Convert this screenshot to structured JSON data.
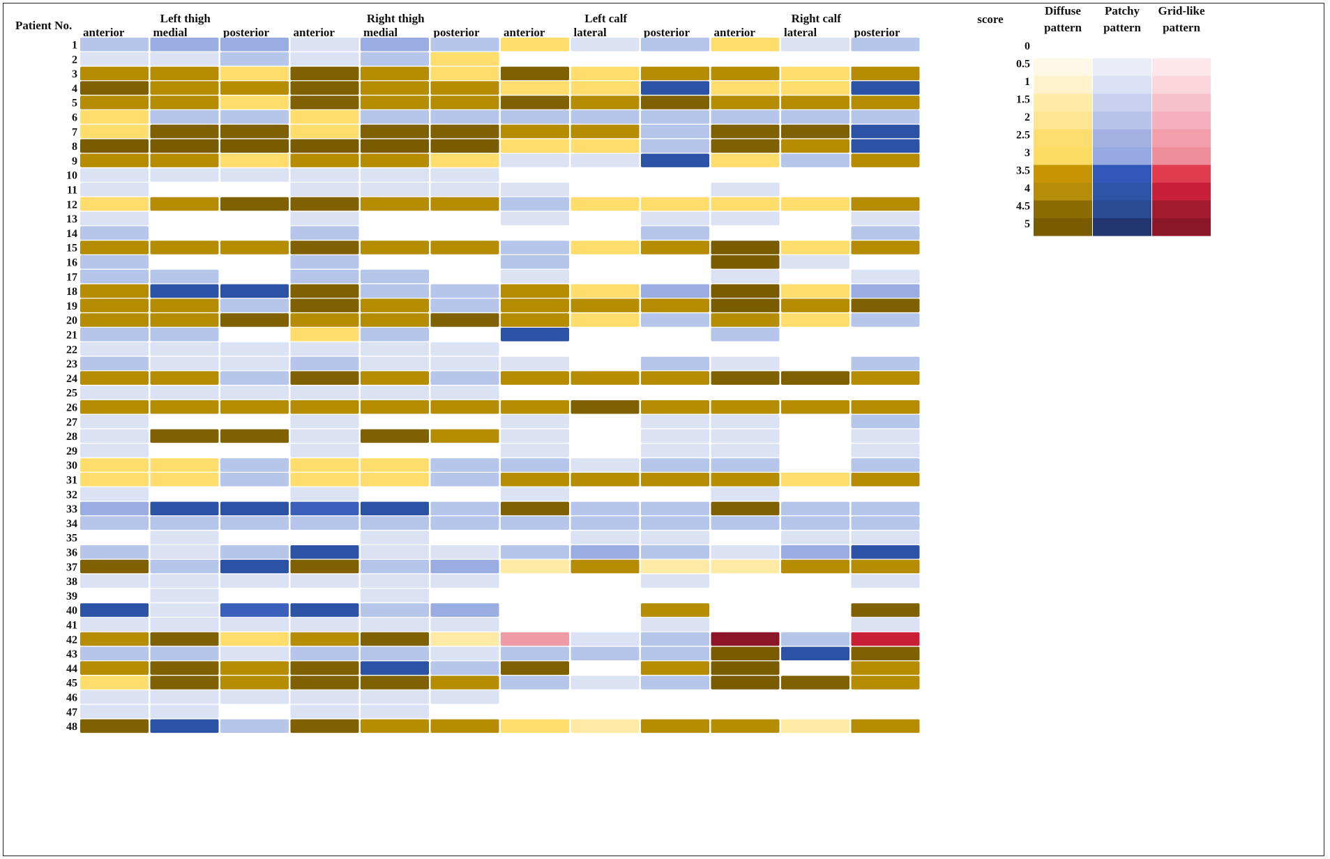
{
  "chart_data": {
    "type": "heatmap",
    "header": {
      "patient_label": "Patient No.",
      "groups": [
        "Left thigh",
        "Right thigh",
        "Left calf",
        "Right calf"
      ],
      "columns": [
        "anterior",
        "medial",
        "posterior",
        "anterior",
        "medial",
        "posterior",
        "anterior",
        "lateral",
        "posterior",
        "anterior",
        "lateral",
        "posterior"
      ]
    },
    "patients": [
      "1",
      "2",
      "3",
      "4",
      "5",
      "6",
      "7",
      "8",
      "9",
      "10",
      "11",
      "12",
      "13",
      "14",
      "15",
      "16",
      "17",
      "18",
      "19",
      "20",
      "21",
      "22",
      "23",
      "24",
      "25",
      "26",
      "27",
      "28",
      "29",
      "30",
      "31",
      "32",
      "33",
      "34",
      "35",
      "36",
      "37",
      "38",
      "39",
      "40",
      "41",
      "42",
      "43",
      "44",
      "45",
      "46",
      "47",
      "48"
    ],
    "cells": [
      [
        "P2",
        "P2.5",
        "P2.5",
        "P1",
        "P2.5",
        "P2",
        "D3",
        "P1",
        "P2",
        "D3",
        "P1",
        "P2"
      ],
      [
        "P1",
        "P1",
        "P2",
        "P1",
        "P2",
        "D3",
        "N",
        "N",
        "N",
        "N",
        "N",
        "N"
      ],
      [
        "D4",
        "D4",
        "D3",
        "D4.5",
        "D4",
        "D3",
        "D4.5",
        "D3",
        "D4",
        "D4",
        "D3",
        "D4"
      ],
      [
        "D4.5",
        "D4",
        "D4",
        "D4.5",
        "D4",
        "D4",
        "D3",
        "D3",
        "P4",
        "D3",
        "D3",
        "P4"
      ],
      [
        "D4",
        "D4",
        "D3",
        "D4.5",
        "D4",
        "D4",
        "D4.5",
        "D4",
        "D4.5",
        "D4",
        "D4",
        "D4"
      ],
      [
        "D3",
        "P2",
        "P2",
        "D3",
        "P2",
        "P2",
        "P2",
        "P2",
        "P2",
        "P2",
        "P2",
        "P2"
      ],
      [
        "D3",
        "D4.5",
        "D4.5",
        "D3",
        "D4.5",
        "D4.5",
        "D4",
        "D4",
        "P2",
        "D4.5",
        "D4.5",
        "P4"
      ],
      [
        "D5",
        "D5",
        "D5",
        "D5",
        "D5",
        "D5",
        "D3",
        "D3",
        "P2",
        "D4.5",
        "D4",
        "P4"
      ],
      [
        "D4",
        "D4",
        "D3",
        "D4",
        "D4",
        "D3",
        "P1",
        "P1",
        "P4",
        "D3",
        "P2",
        "D4"
      ],
      [
        "P1",
        "P1",
        "P1",
        "P1",
        "P1",
        "P1",
        "N",
        "N",
        "N",
        "N",
        "N",
        "N"
      ],
      [
        "P1",
        "N",
        "N",
        "P1",
        "P1",
        "P1",
        "P1",
        "N",
        "N",
        "P1",
        "N",
        "N"
      ],
      [
        "D3",
        "D4",
        "D4.5",
        "D4.5",
        "D4",
        "D4",
        "P2",
        "D3",
        "D3",
        "D3",
        "D3",
        "D4"
      ],
      [
        "P1",
        "N",
        "N",
        "P1",
        "N",
        "N",
        "P1",
        "N",
        "P1",
        "P1",
        "N",
        "P1"
      ],
      [
        "P2",
        "N",
        "N",
        "P2",
        "N",
        "N",
        "N",
        "N",
        "P2",
        "N",
        "N",
        "P2"
      ],
      [
        "D4",
        "D4",
        "D4",
        "D4.5",
        "D4",
        "D4",
        "P2",
        "D3",
        "D4",
        "D5",
        "D3",
        "D4"
      ],
      [
        "P2",
        "N",
        "N",
        "P2",
        "N",
        "N",
        "P2",
        "N",
        "N",
        "D5",
        "P1",
        "N"
      ],
      [
        "P2",
        "P2",
        "N",
        "P2",
        "P2",
        "N",
        "P1",
        "N",
        "N",
        "P1",
        "N",
        "P1"
      ],
      [
        "D4",
        "P4",
        "P4",
        "D4.5",
        "P2",
        "P2",
        "D4",
        "D3",
        "P2.5",
        "D5",
        "D3",
        "P2.5"
      ],
      [
        "D4",
        "D4",
        "P2",
        "D4.5",
        "D4",
        "P2",
        "D4",
        "D4",
        "D4",
        "D5",
        "D4",
        "D4.5"
      ],
      [
        "D4",
        "D4",
        "D4.5",
        "D4",
        "D4",
        "D4.5",
        "D4",
        "D3",
        "P2",
        "D4",
        "D3",
        "P2"
      ],
      [
        "P2",
        "P2",
        "N",
        "D3",
        "P2",
        "N",
        "P4",
        "N",
        "N",
        "P2",
        "N",
        "N"
      ],
      [
        "P1",
        "P1",
        "P1",
        "P1",
        "P1",
        "P1",
        "N",
        "N",
        "N",
        "N",
        "N",
        "N"
      ],
      [
        "P2",
        "P1",
        "P1",
        "P2",
        "P1",
        "P1",
        "P1",
        "N",
        "P2",
        "P1",
        "N",
        "P2"
      ],
      [
        "D4",
        "D4",
        "P2",
        "D4.5",
        "D4",
        "P2",
        "D4",
        "D4",
        "D4",
        "D4.5",
        "D4.5",
        "D4"
      ],
      [
        "P1",
        "P1",
        "P1",
        "P1",
        "P1",
        "P1",
        "N",
        "N",
        "N",
        "N",
        "N",
        "N"
      ],
      [
        "D4",
        "D4",
        "D4",
        "D4",
        "D4",
        "D4",
        "D4",
        "D4.5",
        "D4",
        "D4",
        "D4",
        "D4"
      ],
      [
        "P1",
        "N",
        "N",
        "P1",
        "N",
        "N",
        "P1",
        "N",
        "P1",
        "P1",
        "N",
        "P2"
      ],
      [
        "P1",
        "D4.5",
        "D4.5",
        "P1",
        "D4.5",
        "D4",
        "P1",
        "N",
        "P1",
        "P1",
        "N",
        "P1"
      ],
      [
        "P1",
        "N",
        "N",
        "P1",
        "N",
        "N",
        "P1",
        "N",
        "P1",
        "P1",
        "N",
        "P1"
      ],
      [
        "D3",
        "D3",
        "P2",
        "D3",
        "D3",
        "P2",
        "P2",
        "P1",
        "P2",
        "P2",
        "N",
        "P2"
      ],
      [
        "D3",
        "D3",
        "P2",
        "D3",
        "D3",
        "P2",
        "D4",
        "D4",
        "D4",
        "D4",
        "D3",
        "D4"
      ],
      [
        "P1",
        "N",
        "N",
        "P1",
        "N",
        "N",
        "P1",
        "N",
        "N",
        "P1",
        "N",
        "N"
      ],
      [
        "P2.5",
        "P4",
        "P4",
        "P3.5",
        "P4",
        "P2",
        "D4.5",
        "P2",
        "P2",
        "D4.5",
        "P2",
        "P2"
      ],
      [
        "P2",
        "P2",
        "P2",
        "P2",
        "P2",
        "P2",
        "P2",
        "P2",
        "P2",
        "P2",
        "P2",
        "P2"
      ],
      [
        "N",
        "P1",
        "N",
        "N",
        "P1",
        "N",
        "N",
        "P1",
        "P1",
        "N",
        "P1",
        "P1"
      ],
      [
        "P2",
        "P1",
        "P2",
        "P4",
        "P1",
        "P1",
        "P2",
        "P2.5",
        "P2",
        "P1",
        "P2.5",
        "P4"
      ],
      [
        "D4.5",
        "P2",
        "P4",
        "D4.5",
        "P2",
        "P2.5",
        "D1.5",
        "D4",
        "D1.5",
        "D1.5",
        "D4",
        "D4"
      ],
      [
        "P1",
        "P1",
        "P1",
        "P1",
        "P1",
        "P1",
        "N",
        "N",
        "P1",
        "N",
        "N",
        "P1"
      ],
      [
        "N",
        "P1",
        "N",
        "N",
        "P1",
        "N",
        "N",
        "N",
        "N",
        "N",
        "N",
        "N"
      ],
      [
        "P4",
        "P1",
        "P3.5",
        "P4",
        "P2",
        "P2.5",
        "N",
        "N",
        "D4",
        "N",
        "N",
        "D4.5"
      ],
      [
        "P1",
        "P1",
        "P1",
        "P1",
        "P1",
        "P1",
        "N",
        "N",
        "P1",
        "N",
        "N",
        "P1"
      ],
      [
        "D4",
        "D4.5",
        "D3",
        "D4",
        "D4.5",
        "D1.5",
        "G3",
        "P1",
        "P2",
        "G5",
        "P2",
        "G4"
      ],
      [
        "P2",
        "P2",
        "P1",
        "P2",
        "P2",
        "P1",
        "P2",
        "P2",
        "P2",
        "D5",
        "P4",
        "D4.5"
      ],
      [
        "D4",
        "D4.5",
        "D4",
        "D4.5",
        "P4",
        "P2",
        "D4.5",
        "N",
        "D4",
        "D5",
        "N",
        "D4"
      ],
      [
        "D3",
        "D4.5",
        "D4",
        "D4.5",
        "D4.5",
        "D4",
        "P2",
        "P1",
        "P2",
        "D5",
        "D4.5",
        "D4"
      ],
      [
        "P1",
        "P1",
        "P1",
        "P1",
        "P1",
        "P1",
        "N",
        "N",
        "N",
        "N",
        "N",
        "N"
      ],
      [
        "P1",
        "P1",
        "N",
        "P1",
        "P1",
        "N",
        "N",
        "N",
        "N",
        "N",
        "N",
        "N"
      ],
      [
        "D4.5",
        "P4",
        "P2",
        "D4.5",
        "D4",
        "D4",
        "D3",
        "D1.5",
        "D4",
        "D4",
        "D1.5",
        "D4"
      ]
    ],
    "legend": {
      "score_label": "score",
      "pattern_headers": [
        [
          "Diffuse",
          "pattern"
        ],
        [
          "Patchy",
          "pattern"
        ],
        [
          "Grid-like",
          "pattern"
        ]
      ],
      "scores": [
        "0",
        "0.5",
        "1",
        "1.5",
        "2",
        "2.5",
        "3",
        "3.5",
        "4",
        "4.5",
        "5"
      ],
      "colors": {
        "diffuse": [
          "#ffffff",
          "#fff8e6",
          "#fff2cc",
          "#ffeaa6",
          "#fee594",
          "#fddc70",
          "#fddc63",
          "#c79504",
          "#b58d08",
          "#8c6a02",
          "#7a5c00"
        ],
        "patchy": [
          "#ffffff",
          "#eaedf8",
          "#dbe1f4",
          "#c9d1ee",
          "#b8c4ea",
          "#a2b1e2",
          "#96a9e0",
          "#3057b9",
          "#2c54a7",
          "#2a4b94",
          "#21366f"
        ],
        "grid": [
          "#ffffff",
          "#fde7eb",
          "#fad6dc",
          "#f7c2cb",
          "#f4b0bc",
          "#f29fab",
          "#ef8e9b",
          "#e03c50",
          "#c8203a",
          "#a01c2e",
          "#8a1627"
        ]
      }
    },
    "cell_colors": {
      "N": "#ffffff",
      "P1": "#dbe2f4",
      "P2": "#b6c5ea",
      "P2.5": "#99ade2",
      "P3.5": "#3a60bb",
      "P4": "#2b52a5",
      "D1.5": "#feeaa4",
      "D3": "#fedd6c",
      "D4": "#b68c03",
      "D4.5": "#7f6101",
      "D5": "#7a5c00",
      "G3": "#f09aa5",
      "G4": "#c92038",
      "G5": "#8c1528"
    }
  }
}
